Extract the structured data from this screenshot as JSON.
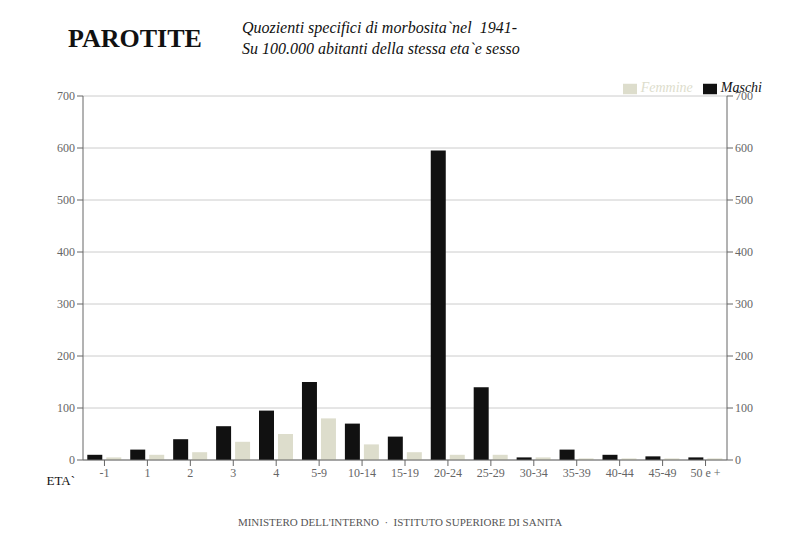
{
  "chart_data": {
    "type": "bar",
    "title": "PAROTITE",
    "subtitle": [
      "Quozienti specifici di morbosita`nel  1941-",
      "Su 100.000 abitanti della stessa eta`e sesso"
    ],
    "x_label": "ETA`",
    "annotations": [
      "MINISTERO DELL'INTERNO  ·  ISTITUTO SUPERIORE DI SANITA"
    ],
    "categories": [
      "-1",
      "1",
      "2",
      "3",
      "4",
      "5-9",
      "10-14",
      "15-19",
      "20-24",
      "25-29",
      "30-34",
      "35-39",
      "40-44",
      "45-49",
      "50 e +"
    ],
    "series": [
      {
        "name": "Maschi",
        "color": "#111111",
        "values": [
          10,
          20,
          40,
          65,
          95,
          150,
          70,
          45,
          595,
          140,
          5,
          20,
          10,
          7,
          5
        ]
      },
      {
        "name": "Femmine",
        "color": "#ddddcc",
        "values": [
          5,
          10,
          15,
          35,
          50,
          80,
          30,
          15,
          10,
          10,
          5,
          3,
          3,
          3,
          3
        ]
      }
    ],
    "ylim": [
      0,
      700
    ],
    "yticks": [
      0,
      100,
      200,
      300,
      400,
      500,
      600,
      700
    ],
    "y2lim": [
      0,
      700
    ],
    "y2ticks": [
      0,
      100,
      200,
      300,
      400,
      500,
      600,
      700
    ],
    "grid": true,
    "legend": "upper right"
  }
}
